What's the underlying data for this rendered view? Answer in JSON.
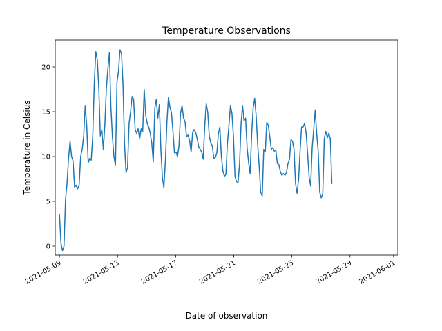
{
  "chart_data": {
    "type": "line",
    "title": "Temperature Observations",
    "xlabel": "Date of observation",
    "ylabel": "Temperature in Celsius",
    "x_tick_labels": [
      "2021-05-09",
      "2021-05-13",
      "2021-05-17",
      "2021-05-21",
      "2021-05-25",
      "2021-05-29",
      "2021-06-01"
    ],
    "x_tick_dates": [
      "2021-05-09",
      "2021-05-13",
      "2021-05-17",
      "2021-05-21",
      "2021-05-25",
      "2021-05-29",
      "2021-06-01"
    ],
    "y_ticks": [
      0,
      5,
      10,
      15,
      20
    ],
    "xlim": [
      "2021-05-08T17:00",
      "2021-06-01T07:00"
    ],
    "ylim": [
      -1.0,
      23.0
    ],
    "grid": false,
    "line_color": "#1f77b4",
    "series": [
      {
        "x_start": "2021-05-09T00:00",
        "x_step_hours": 2.5,
        "values": [
          3.5,
          0.3,
          -0.5,
          0.0,
          5.2,
          7.0,
          9.8,
          11.7,
          10.0,
          9.5,
          6.6,
          6.8,
          6.4,
          6.8,
          10.0,
          10.8,
          12.3,
          15.7,
          13.5,
          9.3,
          9.8,
          9.6,
          12.3,
          18.2,
          21.7,
          20.8,
          17.6,
          12.3,
          13.0,
          10.8,
          13.6,
          17.6,
          19.8,
          21.6,
          15.5,
          12.2,
          10.0,
          9.0,
          18.3,
          19.5,
          21.9,
          21.5,
          18.0,
          11.3,
          8.2,
          8.8,
          13.7,
          15.0,
          16.7,
          16.4,
          13.0,
          12.6,
          13.1,
          12.0,
          13.1,
          12.8,
          17.5,
          14.6,
          13.7,
          13.3,
          12.6,
          11.5,
          9.4,
          15.4,
          16.4,
          14.3,
          15.8,
          10.8,
          7.7,
          6.5,
          9.5,
          13.8,
          16.6,
          15.5,
          14.9,
          12.8,
          10.4,
          10.5,
          10.0,
          11.2,
          14.8,
          15.7,
          14.3,
          13.9,
          12.2,
          12.4,
          11.8,
          10.5,
          12.7,
          13.0,
          12.7,
          12.0,
          11.1,
          10.8,
          10.5,
          9.7,
          13.4,
          15.9,
          14.9,
          12.3,
          11.5,
          11.2,
          9.8,
          9.9,
          10.4,
          12.5,
          13.3,
          10.0,
          8.4,
          7.8,
          8.0,
          11.5,
          13.5,
          15.7,
          14.8,
          12.2,
          7.8,
          7.2,
          7.1,
          9.1,
          13.6,
          15.7,
          14.0,
          14.3,
          11.0,
          9.3,
          8.1,
          12.5,
          15.4,
          16.5,
          14.5,
          11.3,
          8.9,
          6.0,
          5.6,
          10.8,
          10.5,
          13.8,
          13.5,
          12.2,
          10.8,
          11.0,
          10.6,
          10.7,
          9.2,
          9.1,
          8.3,
          7.9,
          8.1,
          7.9,
          8.2,
          9.2,
          9.7,
          11.9,
          11.7,
          10.8,
          7.0,
          5.9,
          7.4,
          10.6,
          13.3,
          13.3,
          13.7,
          12.6,
          10.3,
          7.7,
          6.7,
          11.0,
          13.0,
          15.2,
          12.5,
          10.6,
          6.0,
          5.4,
          5.8,
          12.0,
          12.8,
          12.1,
          12.6,
          12.0,
          7.0
        ]
      }
    ]
  }
}
